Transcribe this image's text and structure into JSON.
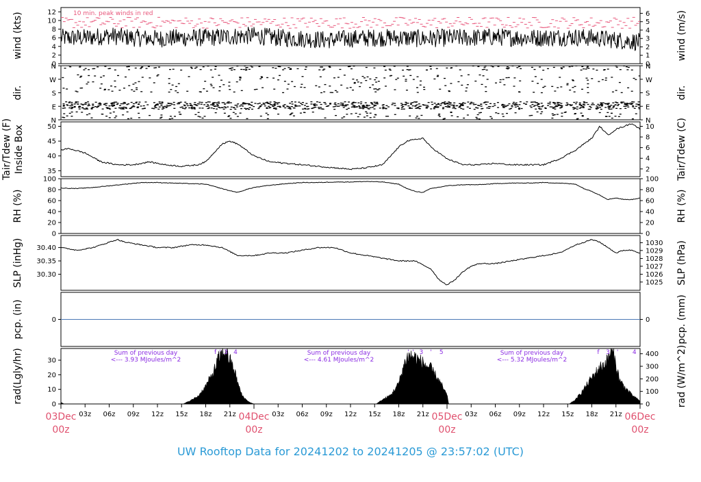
{
  "title": "UW Rooftop Data for 20241202  to  20241205 @ 23:57:02  (UTC)",
  "colors": {
    "trace": "#000000",
    "peak": "#e8557a",
    "precip_line": "#4a78b5",
    "day_label": "#e0506e",
    "title": "#2a9ad6",
    "annotation": "#8a2be2",
    "frame": "#000000"
  },
  "time_axis": {
    "unit": "hours since 03Dec 00z",
    "range": [
      0,
      72
    ],
    "tick_labels": [
      "03z",
      "06z",
      "09z",
      "12z",
      "15z",
      "18z",
      "21z",
      "03z",
      "06z",
      "09z",
      "12z",
      "15z",
      "18z",
      "21z",
      "03z",
      "06z",
      "09z",
      "12z",
      "15z",
      "18z",
      "21z"
    ],
    "tick_hours": [
      3,
      6,
      9,
      12,
      15,
      18,
      21,
      27,
      30,
      33,
      36,
      39,
      42,
      45,
      51,
      54,
      57,
      60,
      63,
      66,
      69
    ],
    "day_labels": [
      {
        "hour": 0,
        "date": "03Dec",
        "time": "00z"
      },
      {
        "hour": 24,
        "date": "04Dec",
        "time": "00z"
      },
      {
        "hour": 48,
        "date": "05Dec",
        "time": "00z"
      },
      {
        "hour": 72,
        "date": "06Dec",
        "time": "00z"
      }
    ]
  },
  "chart_data": [
    {
      "id": "wind",
      "type": "line",
      "ylabel_left": "wind (kts)",
      "ylabel_right": "wind (m/s)",
      "annotation": "10 min. peak winds in red",
      "ylim": [
        0,
        13
      ],
      "yticks_left": [
        0,
        2,
        4,
        6,
        8,
        10,
        12
      ],
      "yticks_right": [
        0,
        1,
        2,
        3,
        4,
        5,
        6
      ],
      "x_hours": [
        0,
        3,
        6,
        9,
        12,
        15,
        18,
        21,
        24,
        27,
        30,
        33,
        36,
        39,
        42,
        45,
        48,
        51,
        54,
        57,
        60,
        63,
        66,
        69,
        72
      ],
      "mean_kts": [
        6,
        6,
        6.5,
        6,
        5.8,
        6,
        6,
        6.3,
        6.5,
        6,
        5.8,
        5.5,
        5.8,
        6,
        6,
        5.8,
        6,
        6,
        6.2,
        6,
        6,
        6.2,
        6,
        5.5,
        5
      ],
      "peak_kts_typical": 9.5
    },
    {
      "id": "dir",
      "type": "scatter",
      "ylabel_left": "dir.",
      "ylabel_right": "dir.",
      "ytick_labels": [
        "N",
        "E",
        "S",
        "W",
        "N"
      ],
      "ylim": [
        0,
        360
      ],
      "dominant_direction": "E"
    },
    {
      "id": "temp",
      "type": "line",
      "ylabel_left": "Tair/Tdew (F)\nInside Box",
      "ylabel_right": "Tair/Tdew (C)",
      "ylim": [
        33,
        51.5
      ],
      "yticks_left": [
        35,
        40,
        45,
        50
      ],
      "yticks_right": [
        2,
        4,
        6,
        8,
        10
      ],
      "x_hours": [
        0,
        1,
        3,
        5,
        7,
        9,
        11,
        13,
        15,
        17,
        18,
        19,
        20,
        21,
        22,
        23,
        24,
        26,
        28,
        30,
        32,
        34,
        36,
        38,
        40,
        41,
        42,
        43,
        44,
        45,
        46,
        47,
        48,
        50,
        52,
        54,
        56,
        58,
        60,
        62,
        64,
        65,
        66,
        67,
        68,
        69,
        70,
        71,
        72
      ],
      "values_f": [
        42,
        42.5,
        41,
        38,
        37,
        37,
        38,
        37,
        36.5,
        37,
        38,
        41,
        44,
        45,
        44,
        42,
        40,
        38,
        37.5,
        37,
        36.5,
        36,
        35.5,
        36,
        37,
        40,
        43,
        45,
        45.5,
        46,
        43,
        41,
        39,
        37,
        37,
        37.5,
        37,
        37,
        37,
        39,
        42,
        44,
        46,
        50,
        47,
        49,
        50,
        51,
        49
      ]
    },
    {
      "id": "rh",
      "type": "line",
      "ylabel_left": "RH (%)",
      "ylabel_right": "RH (%)",
      "ylim": [
        0,
        100
      ],
      "yticks_left": [
        0,
        20,
        40,
        60,
        80,
        100
      ],
      "yticks_right": [
        0,
        20,
        40,
        60,
        80,
        100
      ],
      "x_hours": [
        0,
        2,
        4,
        6,
        8,
        10,
        12,
        14,
        16,
        18,
        20,
        21,
        22,
        23,
        24,
        26,
        28,
        30,
        32,
        34,
        36,
        38,
        40,
        42,
        43,
        44,
        45,
        46,
        48,
        50,
        52,
        54,
        56,
        58,
        60,
        62,
        64,
        65,
        66,
        67,
        68,
        69,
        70,
        71,
        72
      ],
      "values": [
        83,
        82,
        84,
        87,
        90,
        93,
        93,
        92,
        91,
        90,
        82,
        78,
        75,
        80,
        84,
        88,
        91,
        93,
        93,
        94,
        94,
        95,
        94,
        90,
        82,
        77,
        75,
        82,
        87,
        89,
        89,
        91,
        92,
        92,
        93,
        92,
        90,
        82,
        77,
        70,
        62,
        65,
        62,
        62,
        65
      ]
    },
    {
      "id": "slp",
      "type": "line",
      "ylabel_left": "SLP (inHg)",
      "ylabel_right": "SLP (hPa)",
      "ylim": [
        30.24,
        30.445
      ],
      "yticks_left": [
        30.3,
        30.35,
        30.4
      ],
      "yticks_right": [
        1025,
        1026,
        1027,
        1028,
        1029,
        1030
      ],
      "yticks_right_inhg": [
        30.271,
        30.3,
        30.33,
        30.359,
        30.389,
        30.418
      ],
      "x_hours": [
        0,
        2,
        4,
        6,
        7,
        8,
        10,
        12,
        14,
        16,
        18,
        20,
        22,
        24,
        26,
        28,
        30,
        32,
        34,
        36,
        38,
        40,
        42,
        44,
        46,
        47,
        48,
        49,
        50,
        51,
        52,
        54,
        56,
        58,
        60,
        62,
        64,
        66,
        67,
        68,
        69,
        70,
        71,
        72
      ],
      "values": [
        30.4,
        30.39,
        30.4,
        30.42,
        30.43,
        30.42,
        30.41,
        30.4,
        30.4,
        30.41,
        30.41,
        30.4,
        30.37,
        30.37,
        30.38,
        30.38,
        30.39,
        30.4,
        30.4,
        30.38,
        30.37,
        30.36,
        30.35,
        30.35,
        30.32,
        30.28,
        30.26,
        30.28,
        30.31,
        30.33,
        30.34,
        30.34,
        30.35,
        30.36,
        30.37,
        30.38,
        30.41,
        30.43,
        30.42,
        30.4,
        30.38,
        30.39,
        30.39,
        30.38
      ]
    },
    {
      "id": "pcp",
      "type": "line",
      "ylabel_left": "pcp. (in)",
      "ylabel_right": "pcp. (mm)",
      "ylim": [
        -1,
        1
      ],
      "yticks_left": [
        0
      ],
      "yticks_right": [
        0
      ],
      "x_hours": [
        0,
        72
      ],
      "values": [
        0,
        0
      ]
    },
    {
      "id": "rad",
      "type": "area",
      "ylabel_left": "rad(Lgly/hr)",
      "ylabel_right": "rad (W/m^2)",
      "ylim": [
        0,
        38
      ],
      "yticks_left": [
        0,
        10,
        20,
        30
      ],
      "yticks_right": [
        0,
        100,
        200,
        300,
        400
      ],
      "yticks_right_lgly": [
        0,
        8.6,
        17.2,
        25.8,
        34.4
      ],
      "day_sums": [
        {
          "hour": 8,
          "line1": "Sum of previous day",
          "line2": "<--- 3.93 MJoules/m^2"
        },
        {
          "hour": 32,
          "line1": "Sum of previous day",
          "line2": "<--- 4.61 MJoules/m^2"
        },
        {
          "hour": 56,
          "line1": "Sum of previous day",
          "line2": "<--- 5.32 MJoules/m^2"
        }
      ],
      "top_marks": [
        {
          "hour": 19.2,
          "label": "f"
        },
        {
          "hour": 19.8,
          "label": "'"
        },
        {
          "hour": 20.5,
          "label": "3"
        },
        {
          "hour": 21.7,
          "label": "4"
        },
        {
          "hour": 43.2,
          "label": "'"
        },
        {
          "hour": 43.8,
          "label": "'"
        },
        {
          "hour": 44.8,
          "label": "3"
        },
        {
          "hour": 46.0,
          "label": "'"
        },
        {
          "hour": 47.3,
          "label": "5"
        },
        {
          "hour": 66.8,
          "label": "f"
        },
        {
          "hour": 68.0,
          "label": "3"
        },
        {
          "hour": 69.2,
          "label": "'"
        },
        {
          "hour": 71.3,
          "label": "4"
        }
      ],
      "x_hours": [
        0,
        0.4,
        15.2,
        16,
        17,
        18,
        19,
        19.5,
        20,
        20.5,
        21,
        21.5,
        22,
        22.5,
        23,
        23.5,
        24,
        39.2,
        40,
        41,
        42,
        42.5,
        43,
        43.5,
        44,
        45,
        46,
        47,
        48,
        48.2,
        63.2,
        64,
        65,
        66,
        67,
        67.5,
        68,
        68.3,
        68.7,
        69,
        69.5,
        70,
        70.5,
        71,
        72
      ],
      "values": [
        1,
        0,
        0,
        2,
        5,
        12,
        22,
        30,
        34,
        36,
        30,
        24,
        14,
        6,
        3,
        1,
        0,
        0,
        3,
        6,
        14,
        24,
        32,
        33,
        32,
        28,
        24,
        16,
        6,
        0,
        0,
        3,
        10,
        18,
        25,
        27,
        30,
        36,
        34,
        26,
        16,
        12,
        9,
        6,
        2
      ]
    }
  ]
}
